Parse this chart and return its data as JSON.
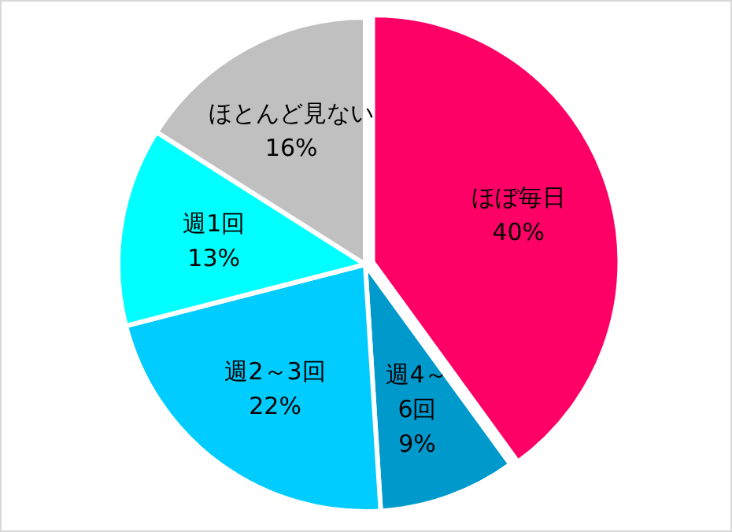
{
  "chart_data": {
    "type": "pie",
    "categories": [
      "ほぼ毎日",
      "週4～6回",
      "週2～3回",
      "週1回",
      "ほとんど見ない"
    ],
    "values": [
      40,
      9,
      22,
      13,
      16
    ],
    "colors": [
      "#ff0066",
      "#0099cc",
      "#00ccff",
      "#00ffff",
      "#c0c0c0"
    ],
    "value_labels": [
      "40%",
      "9%",
      "22%",
      "13%",
      "16%"
    ]
  }
}
